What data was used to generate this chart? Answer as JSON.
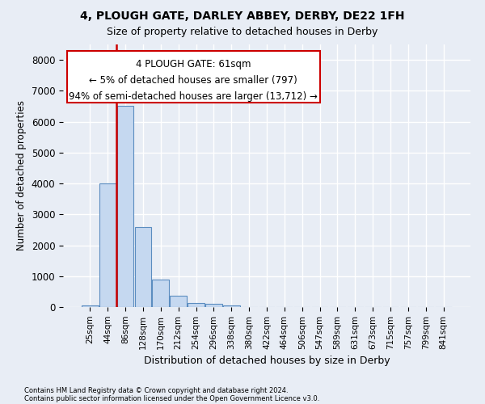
{
  "title1": "4, PLOUGH GATE, DARLEY ABBEY, DERBY, DE22 1FH",
  "title2": "Size of property relative to detached houses in Derby",
  "xlabel": "Distribution of detached houses by size in Derby",
  "ylabel": "Number of detached properties",
  "categories": [
    "25sqm",
    "44sqm",
    "86sqm",
    "128sqm",
    "170sqm",
    "212sqm",
    "254sqm",
    "296sqm",
    "338sqm",
    "380sqm",
    "422sqm",
    "464sqm",
    "506sqm",
    "547sqm",
    "589sqm",
    "631sqm",
    "673sqm",
    "715sqm",
    "757sqm",
    "799sqm",
    "841sqm"
  ],
  "values": [
    50,
    4000,
    6500,
    2600,
    900,
    370,
    130,
    100,
    60,
    0,
    0,
    0,
    0,
    0,
    0,
    0,
    0,
    0,
    0,
    0,
    0
  ],
  "bar_color": "#c5d8f0",
  "bar_edge_color": "#5b8dc0",
  "annotation_text_line1": "4 PLOUGH GATE: 61sqm",
  "annotation_text_line2": "← 5% of detached houses are smaller (797)",
  "annotation_text_line3": "94% of semi-detached houses are larger (13,712) →",
  "vline_color": "#cc0000",
  "box_color": "#cc0000",
  "ylim": [
    0,
    8500
  ],
  "yticks": [
    0,
    1000,
    2000,
    3000,
    4000,
    5000,
    6000,
    7000,
    8000
  ],
  "footnote1": "Contains HM Land Registry data © Crown copyright and database right 2024.",
  "footnote2": "Contains public sector information licensed under the Open Government Licence v3.0.",
  "bg_color": "#e8edf5",
  "plot_bg_color": "#e8edf5",
  "grid_color": "#ffffff",
  "title1_fontsize": 10,
  "title2_fontsize": 9
}
